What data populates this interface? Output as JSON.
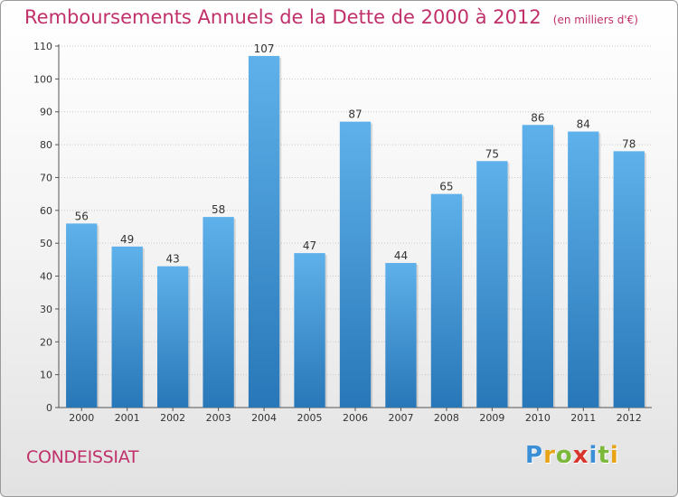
{
  "header": {
    "title": "Remboursements Annuels de la Dette de 2000 à 2012",
    "unit": "(en milliers d'€)"
  },
  "footer": {
    "city": "CONDEISSIAT",
    "logo_letters": [
      "P",
      "r",
      "o",
      "x",
      "i",
      "t",
      "i"
    ],
    "logo_colors": [
      "#3a8fd6",
      "#e8a317",
      "#7cb83a",
      "#d9342b",
      "#3a8fd6",
      "#7cb83a",
      "#e8a317"
    ]
  },
  "colors": {
    "bar_top": "#5eb1ea",
    "bar_bottom": "#2877b8",
    "title": "#c0306a",
    "text": "#333333"
  },
  "chart_data": {
    "type": "bar",
    "title": "Remboursements Annuels de la Dette de 2000 à 2012",
    "xlabel": "",
    "ylabel": "",
    "categories": [
      "2000",
      "2001",
      "2002",
      "2003",
      "2004",
      "2005",
      "2006",
      "2007",
      "2008",
      "2009",
      "2010",
      "2011",
      "2012"
    ],
    "values": [
      56,
      49,
      43,
      58,
      107,
      47,
      87,
      44,
      65,
      75,
      86,
      84,
      78
    ],
    "ylim": [
      0,
      110
    ],
    "yticks": [
      0,
      10,
      20,
      30,
      40,
      50,
      60,
      70,
      80,
      90,
      100,
      110
    ],
    "grid": true
  }
}
